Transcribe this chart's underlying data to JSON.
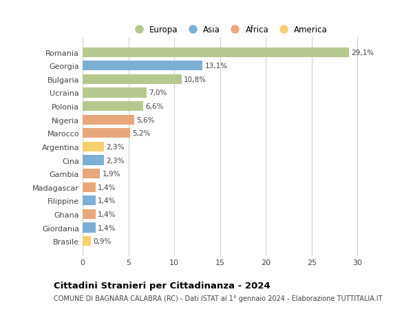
{
  "countries": [
    "Romania",
    "Georgia",
    "Bulgaria",
    "Ucraina",
    "Polonia",
    "Nigeria",
    "Marocco",
    "Argentina",
    "Cina",
    "Gambia",
    "Madagascar",
    "Filippine",
    "Ghana",
    "Giordania",
    "Brasile"
  ],
  "values": [
    29.1,
    13.1,
    10.8,
    7.0,
    6.6,
    5.6,
    5.2,
    2.3,
    2.3,
    1.9,
    1.4,
    1.4,
    1.4,
    1.4,
    0.9
  ],
  "labels": [
    "29,1%",
    "13,1%",
    "10,8%",
    "7,0%",
    "6,6%",
    "5,6%",
    "5,2%",
    "2,3%",
    "2,3%",
    "1,9%",
    "1,4%",
    "1,4%",
    "1,4%",
    "1,4%",
    "0,9%"
  ],
  "continents": [
    "Europa",
    "Asia",
    "Europa",
    "Europa",
    "Europa",
    "Africa",
    "Africa",
    "America",
    "Asia",
    "Africa",
    "Africa",
    "Asia",
    "Africa",
    "Asia",
    "America"
  ],
  "continent_colors": {
    "Europa": "#b5c98e",
    "Asia": "#7bafd4",
    "Africa": "#e8a87c",
    "America": "#f5d06e"
  },
  "legend_order": [
    "Europa",
    "Asia",
    "Africa",
    "America"
  ],
  "xlim": [
    0,
    32
  ],
  "xticks": [
    0,
    5,
    10,
    15,
    20,
    25,
    30
  ],
  "title": "Cittadini Stranieri per Cittadinanza - 2024",
  "subtitle": "COMUNE DI BAGNARA CALABRA (RC) - Dati ISTAT al 1° gennaio 2024 - Elaborazione TUTTITALIA.IT",
  "bg_color": "#ffffff",
  "grid_color": "#d0d0d0",
  "bar_height": 0.72,
  "label_fontsize": 7.5,
  "ytick_fontsize": 8.0,
  "xtick_fontsize": 8.0,
  "title_fontsize": 9.5,
  "subtitle_fontsize": 7.0,
  "legend_fontsize": 8.5
}
